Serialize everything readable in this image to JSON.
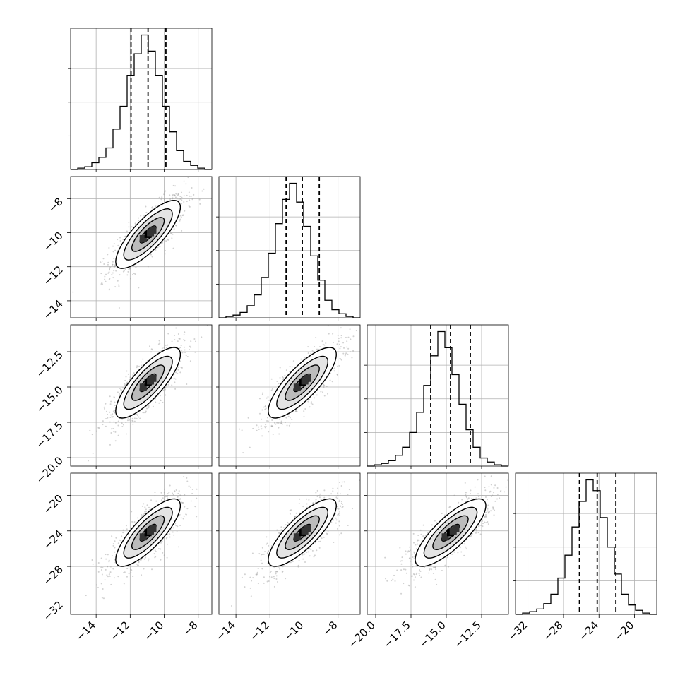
{
  "chart_data": {
    "type": "corner",
    "n_params": 4,
    "grid": true,
    "colors": {
      "hist": "#000000",
      "grid": "#b0b0b0",
      "scatter": "#9a9a9a",
      "frame": "#000000"
    },
    "params": [
      {
        "range": [
          -15.5,
          -7.2
        ],
        "ticks": [
          -14,
          -12,
          -10,
          -8
        ],
        "tick_labels": [
          "−14",
          "−12",
          "−10",
          "−8"
        ],
        "quantiles": [
          -11.95,
          -10.95,
          -9.9
        ],
        "median": -10.95,
        "sigma": 0.95
      },
      {
        "range": [
          -15.0,
          -6.7
        ],
        "ticks": [
          -14,
          -12,
          -10,
          -8
        ],
        "tick_labels": [
          "−14",
          "−12",
          "−10",
          "−8"
        ],
        "quantiles": [
          -11.05,
          -10.1,
          -9.1
        ],
        "median": -10.1,
        "sigma": 1.0
      },
      {
        "range": [
          -20.6,
          -10.6
        ],
        "ticks": [
          -20,
          -17.5,
          -15,
          -12.5
        ],
        "tick_labels": [
          "−20.0",
          "−17.5",
          "−15.0",
          "−12.5"
        ],
        "quantiles": [
          -16.1,
          -14.7,
          -13.3
        ],
        "median": -14.7,
        "sigma": 1.25
      },
      {
        "range": [
          -33.4,
          -17.5
        ],
        "ticks": [
          -32,
          -28,
          -24,
          -20
        ],
        "tick_labels": [
          "−32",
          "−28",
          "−24",
          "−20"
        ],
        "quantiles": [
          -26.2,
          -24.2,
          -22.1
        ],
        "median": -24.2,
        "sigma": 1.9
      }
    ],
    "histograms": [
      {
        "bin_edges_range": [
          -15.5,
          -7.2
        ],
        "n_bins": 20,
        "counts": [
          0,
          1,
          2,
          5,
          9,
          16,
          30,
          47,
          70,
          86,
          100,
          88,
          70,
          47,
          28,
          14,
          6,
          3,
          1,
          0
        ]
      },
      {
        "bin_edges_range": [
          -15.0,
          -6.7
        ],
        "n_bins": 20,
        "counts": [
          0,
          1,
          2,
          4,
          9,
          17,
          30,
          48,
          70,
          88,
          100,
          86,
          68,
          46,
          28,
          13,
          6,
          3,
          1,
          0
        ]
      },
      {
        "bin_edges_range": [
          -20.6,
          -10.6
        ],
        "n_bins": 20,
        "counts": [
          0,
          1,
          2,
          4,
          8,
          14,
          25,
          40,
          60,
          82,
          100,
          88,
          68,
          46,
          27,
          14,
          6,
          3,
          1,
          0
        ]
      },
      {
        "bin_edges_range": [
          -33.4,
          -17.5
        ],
        "n_bins": 20,
        "counts": [
          0,
          1,
          2,
          4,
          8,
          15,
          27,
          44,
          65,
          84,
          100,
          92,
          72,
          50,
          30,
          15,
          7,
          3,
          1,
          0
        ]
      }
    ],
    "correlation": 0.8,
    "contour_levels_sigma": [
      0.5,
      1.0,
      1.5,
      2.0
    ]
  }
}
